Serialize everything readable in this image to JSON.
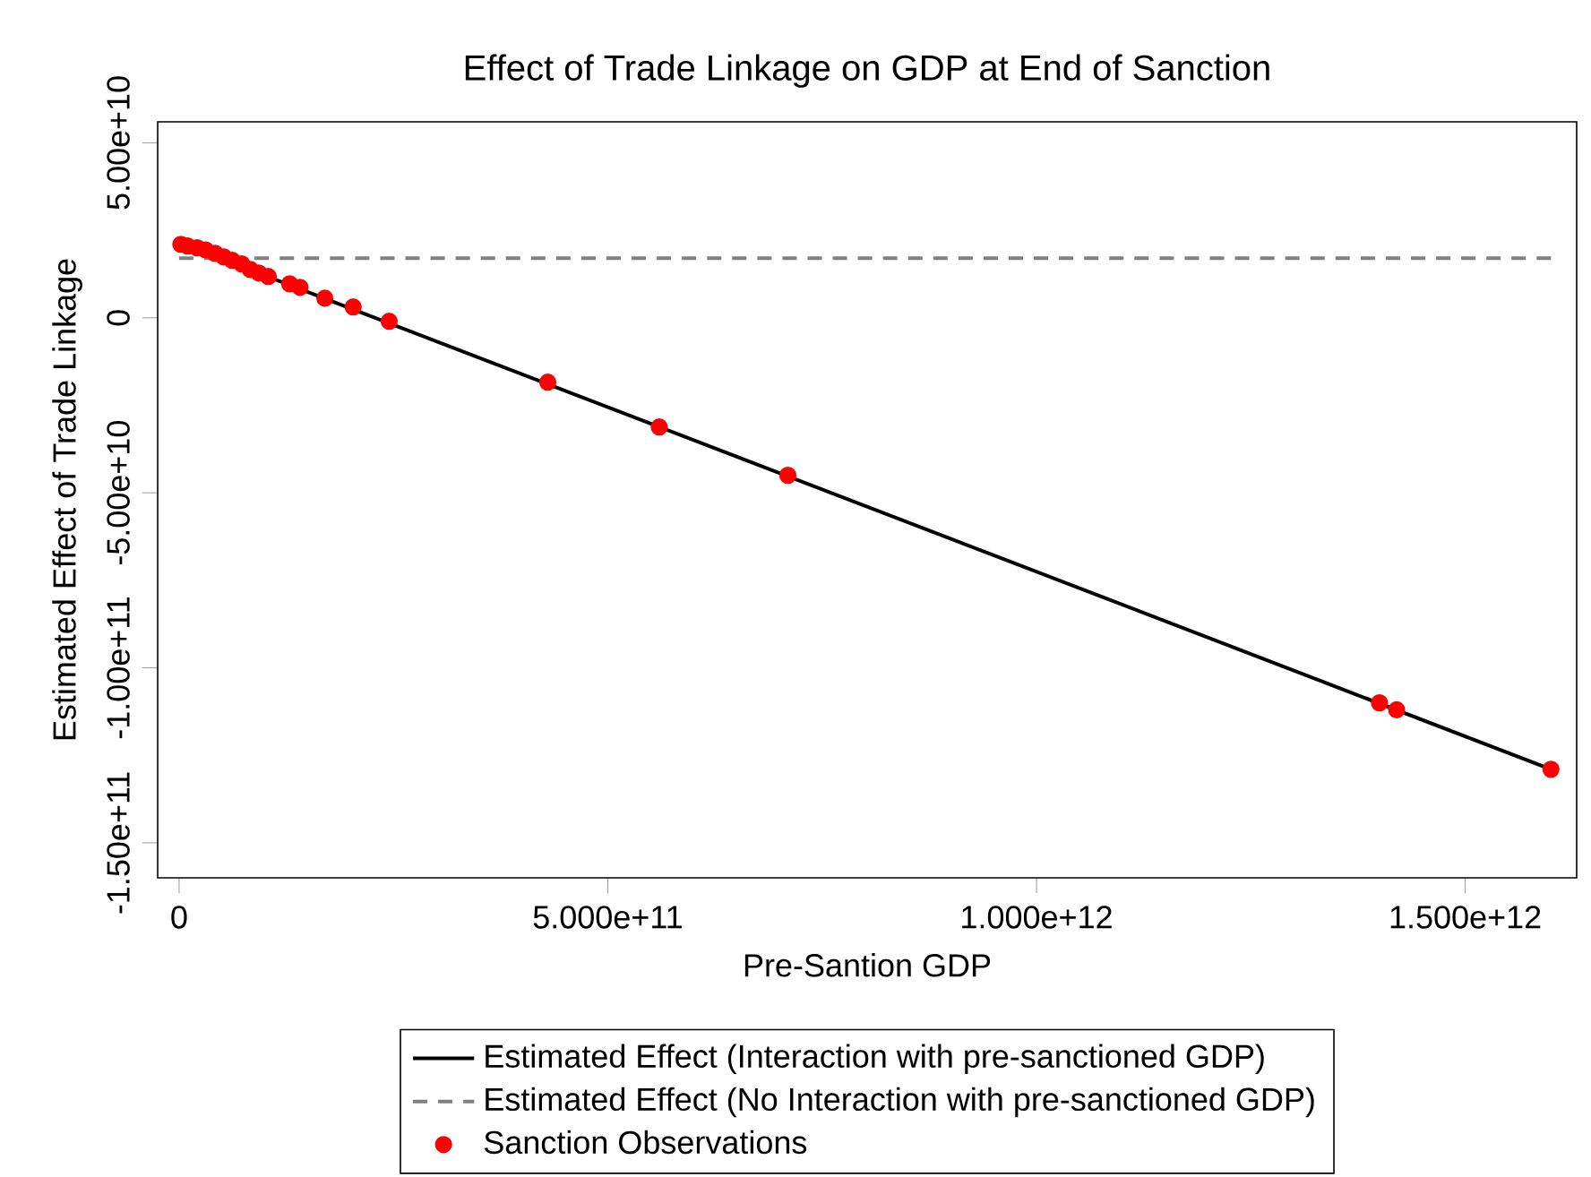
{
  "chart_data": {
    "type": "line",
    "title": "Effect of Trade Linkage on GDP at End of Sanction",
    "xlabel": "Pre-Santion GDP",
    "ylabel": "Estimated Effect of Trade Linkage",
    "xlim": [
      -25000000000.0,
      1630000000000.0
    ],
    "ylim": [
      -160000000000.0,
      56000000000.0
    ],
    "xticks": [
      0,
      {
        "value": 500000000000.0,
        "label": "5.000e+11"
      },
      {
        "value": 1000000000000.0,
        "label": "1.000e+12"
      },
      {
        "value": 1500000000000.0,
        "label": "1.500e+12"
      }
    ],
    "yticks": [
      {
        "value": -150000000000.0,
        "label": "-1.50e+11"
      },
      {
        "value": -100000000000.0,
        "label": "-1.00e+11"
      },
      {
        "value": -50000000000.0,
        "label": "-5.00e+10"
      },
      0,
      {
        "value": 50000000000.0,
        "label": "5.00e+10"
      }
    ],
    "grid": false,
    "legend": "bottom",
    "series": [
      {
        "name": "Estimated Effect (Interaction with pre-sanctioned GDP)",
        "color": "#000000",
        "line_style": "solid",
        "marker": "none",
        "x": [
          0,
          1600000000000.0
        ],
        "values": [
          21500000000.0,
          -129000000000.0
        ]
      },
      {
        "name": "Estimated Effect (No Interaction with pre-sanctioned GDP)",
        "color": "#808080",
        "line_style": "dashed",
        "marker": "none",
        "x": [
          0,
          1600000000000.0
        ],
        "values": [
          17000000000.0,
          17000000000.0
        ]
      },
      {
        "name": "Sanction Observations",
        "type": "scatter",
        "color": "#ff0000",
        "marker": "circle",
        "x": [
          2000000000.0,
          10000000000.0,
          21000000000.0,
          31000000000.0,
          42000000000.0,
          52000000000.0,
          62000000000.0,
          73000000000.0,
          83000000000.0,
          93000000000.0,
          104000000000.0,
          129000000000.0,
          141000000000.0,
          170000000000.0,
          203000000000.0,
          245000000000.0,
          430000000000.0,
          560000000000.0,
          710000000000.0,
          1400000000000.0,
          1420000000000.0,
          1600000000000.0
        ],
        "values": [
          21000000000.0,
          20500000000.0,
          20000000000.0,
          19400000000.0,
          18400000000.0,
          17400000000.0,
          16400000000.0,
          15400000000.0,
          13800000000.0,
          12800000000.0,
          11800000000.0,
          9700000000.0,
          8700000000.0,
          5600000000.0,
          3100000000.0,
          -1000000000.0,
          -18400000000.0,
          -31200000000.0,
          -45000000000.0,
          -110000000000.0,
          -112000000000.0,
          -129000000000.0
        ]
      }
    ]
  }
}
